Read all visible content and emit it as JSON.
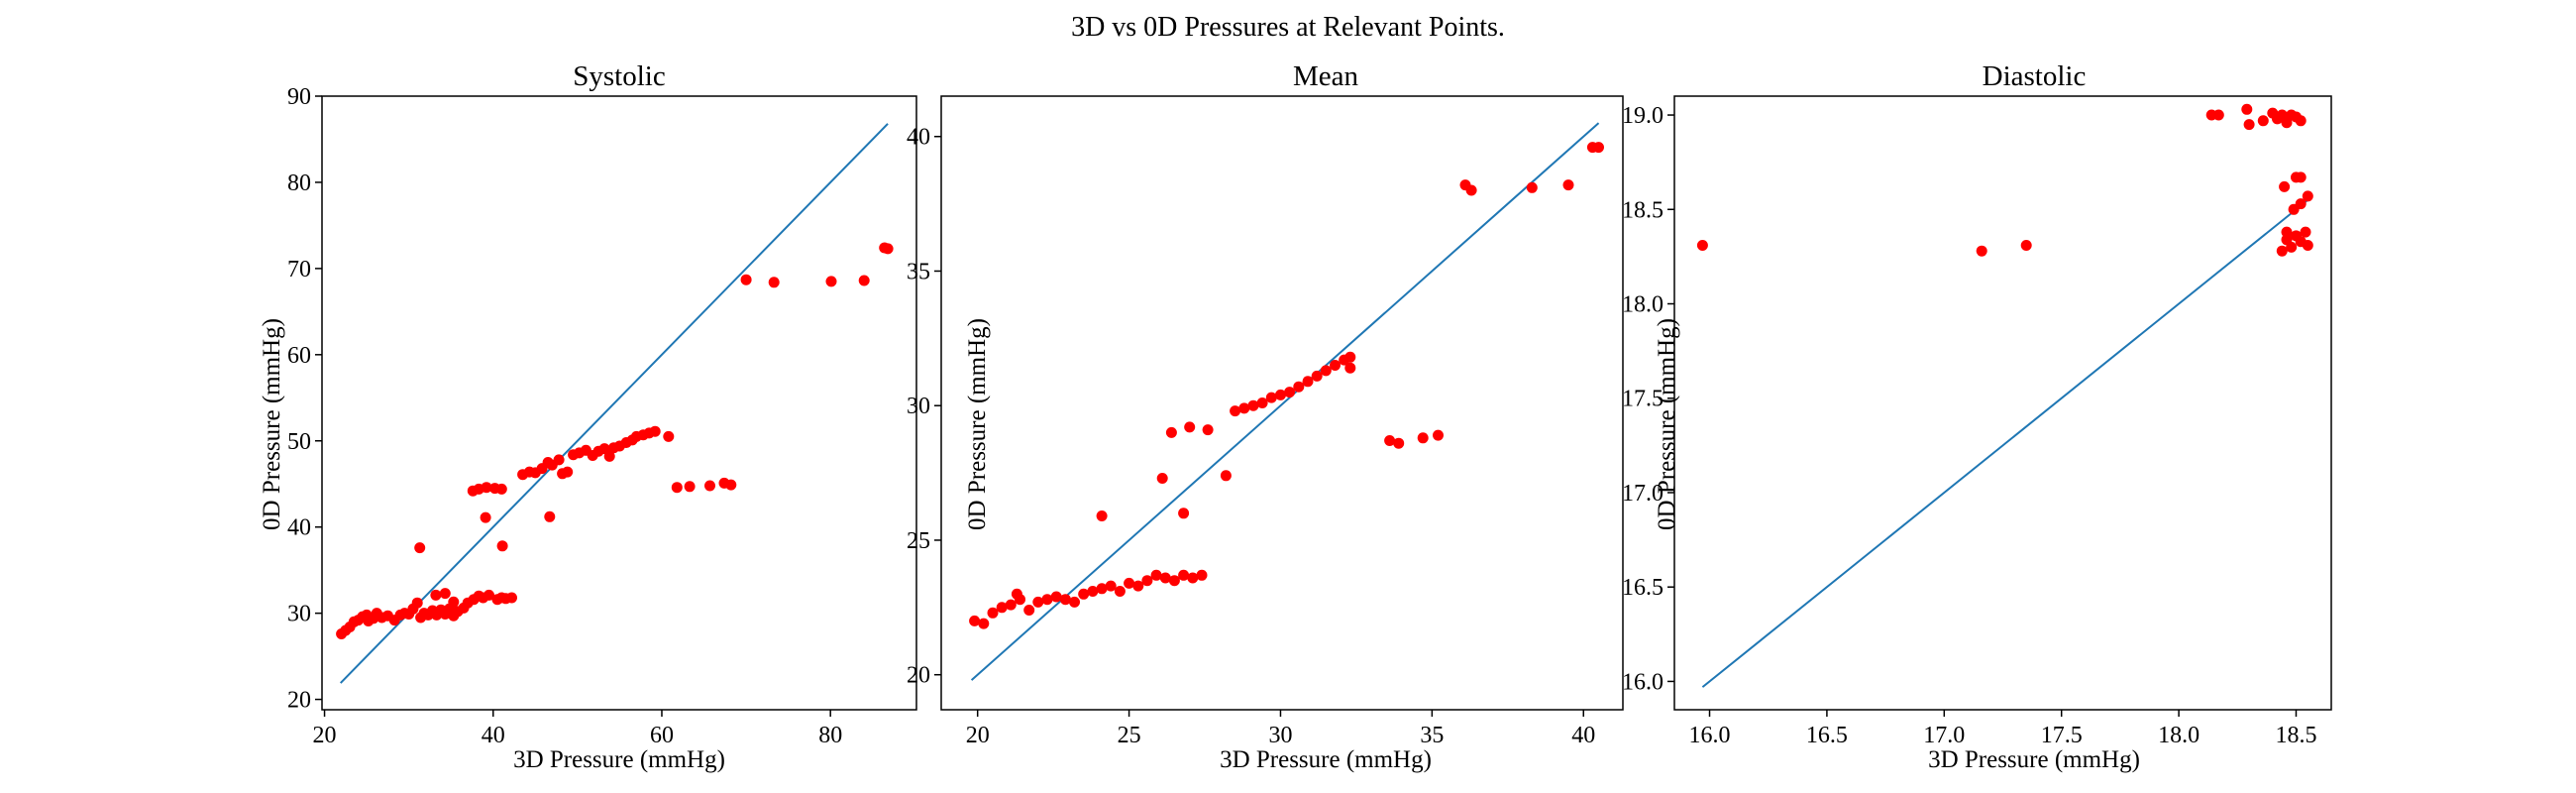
{
  "figure": {
    "title": "3D vs 0D Pressures at Relevant Points."
  },
  "colors": {
    "points": "#ff0000",
    "identity_line": "#1f77b4",
    "axes": "#000000",
    "background": "#ffffff"
  },
  "chart_data": [
    {
      "type": "scatter",
      "title": "Systolic",
      "xlabel": "3D Pressure (mmHg)",
      "ylabel": "0D Pressure (mmHg)",
      "xlim": [
        19.7,
        90.2
      ],
      "ylim": [
        18.8,
        90.0
      ],
      "xticks": [
        20,
        40,
        60,
        80
      ],
      "yticks": [
        20,
        30,
        40,
        50,
        60,
        70,
        80,
        90
      ],
      "tick_decimals": 0,
      "grid": false,
      "legend": "none",
      "identity_line": [
        [
          21.9,
          21.9
        ],
        [
          86.8,
          86.8
        ]
      ],
      "points": [
        [
          22,
          27.6
        ],
        [
          22.5,
          28
        ],
        [
          23,
          28.4
        ],
        [
          23.5,
          29
        ],
        [
          24,
          29.2
        ],
        [
          24.5,
          29.6
        ],
        [
          25,
          29.8
        ],
        [
          25.2,
          29.1
        ],
        [
          25.8,
          29.4
        ],
        [
          26.2,
          30
        ],
        [
          26.8,
          29.5
        ],
        [
          27.5,
          29.7
        ],
        [
          28.3,
          29.2
        ],
        [
          29,
          29.8
        ],
        [
          29.5,
          30
        ],
        [
          30,
          29.9
        ],
        [
          30.5,
          30.5
        ],
        [
          31,
          31.2
        ],
        [
          31.4,
          29.5
        ],
        [
          31.8,
          30
        ],
        [
          32.3,
          29.8
        ],
        [
          32.8,
          30.3
        ],
        [
          33.3,
          29.8
        ],
        [
          33.8,
          30.4
        ],
        [
          34.3,
          29.9
        ],
        [
          34.8,
          30.5
        ],
        [
          35.3,
          29.7
        ],
        [
          35.8,
          30.2
        ],
        [
          36.5,
          30.6
        ],
        [
          37,
          31.2
        ],
        [
          37.7,
          31.6
        ],
        [
          38.3,
          32
        ],
        [
          38.8,
          31.8
        ],
        [
          39.5,
          32.1
        ],
        [
          40.5,
          31.6
        ],
        [
          41,
          31.8
        ],
        [
          41.5,
          31.7
        ],
        [
          42.2,
          31.8
        ],
        [
          33.2,
          32.1
        ],
        [
          34.3,
          32.3
        ],
        [
          35.3,
          31.3
        ],
        [
          31.3,
          37.6
        ],
        [
          39.1,
          41.1
        ],
        [
          41.1,
          37.8
        ],
        [
          46.7,
          41.2
        ],
        [
          37.6,
          44.2
        ],
        [
          38.3,
          44.4
        ],
        [
          39.2,
          44.6
        ],
        [
          40.2,
          44.5
        ],
        [
          41,
          44.4
        ],
        [
          43.5,
          46.1
        ],
        [
          44.3,
          46.4
        ],
        [
          45,
          46.3
        ],
        [
          45.8,
          46.8
        ],
        [
          46.5,
          47.5
        ],
        [
          47,
          47.2
        ],
        [
          47.8,
          47.8
        ],
        [
          48.2,
          46.2
        ],
        [
          48.8,
          46.4
        ],
        [
          49.5,
          48.4
        ],
        [
          50.2,
          48.6
        ],
        [
          51,
          48.9
        ],
        [
          51.8,
          48.3
        ],
        [
          52.5,
          48.8
        ],
        [
          53.2,
          49.1
        ],
        [
          53.8,
          48.2
        ],
        [
          54.3,
          49.2
        ],
        [
          55,
          49.4
        ],
        [
          55.8,
          49.8
        ],
        [
          56.5,
          50.1
        ],
        [
          57,
          50.5
        ],
        [
          57.8,
          50.7
        ],
        [
          58.5,
          50.9
        ],
        [
          59.2,
          51.1
        ],
        [
          60.8,
          50.5
        ],
        [
          61.8,
          44.6
        ],
        [
          63.3,
          44.7
        ],
        [
          65.7,
          44.8
        ],
        [
          67.4,
          45.1
        ],
        [
          68.2,
          44.9
        ],
        [
          70,
          68.7
        ],
        [
          73.3,
          68.4
        ],
        [
          80.1,
          68.5
        ],
        [
          84,
          68.6
        ],
        [
          86.4,
          72.4
        ],
        [
          86.8,
          72.3
        ]
      ]
    },
    {
      "type": "scatter",
      "title": "Mean",
      "xlabel": "3D Pressure (mmHg)",
      "ylabel": "0D Pressure (mmHg)",
      "xlim": [
        18.8,
        41.3
      ],
      "ylim": [
        18.7,
        41.5
      ],
      "xticks": [
        20,
        25,
        30,
        35,
        40
      ],
      "yticks": [
        20,
        25,
        30,
        35,
        40
      ],
      "tick_decimals": 0,
      "grid": false,
      "legend": "none",
      "identity_line": [
        [
          19.8,
          19.8
        ],
        [
          40.5,
          40.5
        ]
      ],
      "points": [
        [
          19.9,
          22
        ],
        [
          20.2,
          21.9
        ],
        [
          20.5,
          22.3
        ],
        [
          20.8,
          22.5
        ],
        [
          21.1,
          22.6
        ],
        [
          21.4,
          22.8
        ],
        [
          21.7,
          22.4
        ],
        [
          22,
          22.7
        ],
        [
          22.3,
          22.8
        ],
        [
          22.6,
          22.9
        ],
        [
          22.9,
          22.8
        ],
        [
          23.2,
          22.7
        ],
        [
          23.5,
          23
        ],
        [
          23.8,
          23.1
        ],
        [
          24.1,
          23.2
        ],
        [
          24.4,
          23.3
        ],
        [
          24.7,
          23.1
        ],
        [
          25,
          23.4
        ],
        [
          25.3,
          23.3
        ],
        [
          25.6,
          23.5
        ],
        [
          25.9,
          23.7
        ],
        [
          26.2,
          23.6
        ],
        [
          26.5,
          23.5
        ],
        [
          26.8,
          23.7
        ],
        [
          27.1,
          23.6
        ],
        [
          27.4,
          23.7
        ],
        [
          21.3,
          23
        ],
        [
          24.1,
          25.9
        ],
        [
          26.1,
          27.3
        ],
        [
          26.8,
          26
        ],
        [
          28.2,
          27.4
        ],
        [
          26.4,
          29
        ],
        [
          27,
          29.2
        ],
        [
          27.6,
          29.1
        ],
        [
          28.5,
          29.8
        ],
        [
          28.8,
          29.9
        ],
        [
          29.1,
          30
        ],
        [
          29.4,
          30.1
        ],
        [
          29.7,
          30.3
        ],
        [
          30,
          30.4
        ],
        [
          30.3,
          30.5
        ],
        [
          30.6,
          30.7
        ],
        [
          30.9,
          30.9
        ],
        [
          31.2,
          31.1
        ],
        [
          31.5,
          31.3
        ],
        [
          31.8,
          31.5
        ],
        [
          32.1,
          31.7
        ],
        [
          32.3,
          31.8
        ],
        [
          32.3,
          31.4
        ],
        [
          33.6,
          28.7
        ],
        [
          33.9,
          28.6
        ],
        [
          34.7,
          28.8
        ],
        [
          35.2,
          28.9
        ],
        [
          36.1,
          38.2
        ],
        [
          36.3,
          38
        ],
        [
          38.3,
          38.1
        ],
        [
          39.5,
          38.2
        ],
        [
          40.3,
          39.6
        ],
        [
          40.5,
          39.6
        ]
      ]
    },
    {
      "type": "scatter",
      "title": "Diastolic",
      "xlabel": "3D Pressure (mmHg)",
      "ylabel": "0D Pressure (mmHg)",
      "xlim": [
        15.85,
        18.65
      ],
      "ylim": [
        15.85,
        19.1
      ],
      "xticks": [
        16.0,
        16.5,
        17.0,
        17.5,
        18.0,
        18.5
      ],
      "yticks": [
        16.0,
        16.5,
        17.0,
        17.5,
        18.0,
        18.5,
        19.0
      ],
      "tick_decimals": 1,
      "grid": false,
      "legend": "none",
      "identity_line": [
        [
          15.97,
          15.97
        ],
        [
          18.56,
          18.56
        ]
      ],
      "points": [
        [
          15.97,
          18.31
        ],
        [
          17.16,
          18.28
        ],
        [
          17.35,
          18.31
        ],
        [
          18.14,
          19.0
        ],
        [
          18.17,
          19.0
        ],
        [
          18.29,
          19.03
        ],
        [
          18.3,
          18.95
        ],
        [
          18.36,
          18.97
        ],
        [
          18.4,
          19.01
        ],
        [
          18.42,
          18.98
        ],
        [
          18.44,
          19.0
        ],
        [
          18.46,
          18.96
        ],
        [
          18.48,
          19.0
        ],
        [
          18.5,
          18.99
        ],
        [
          18.52,
          18.97
        ],
        [
          18.45,
          18.62
        ],
        [
          18.5,
          18.67
        ],
        [
          18.52,
          18.67
        ],
        [
          18.49,
          18.5
        ],
        [
          18.52,
          18.53
        ],
        [
          18.55,
          18.57
        ],
        [
          18.44,
          18.28
        ],
        [
          18.46,
          18.34
        ],
        [
          18.48,
          18.3
        ],
        [
          18.5,
          18.36
        ],
        [
          18.52,
          18.33
        ],
        [
          18.54,
          18.38
        ],
        [
          18.55,
          18.31
        ],
        [
          18.46,
          18.38
        ]
      ]
    }
  ]
}
